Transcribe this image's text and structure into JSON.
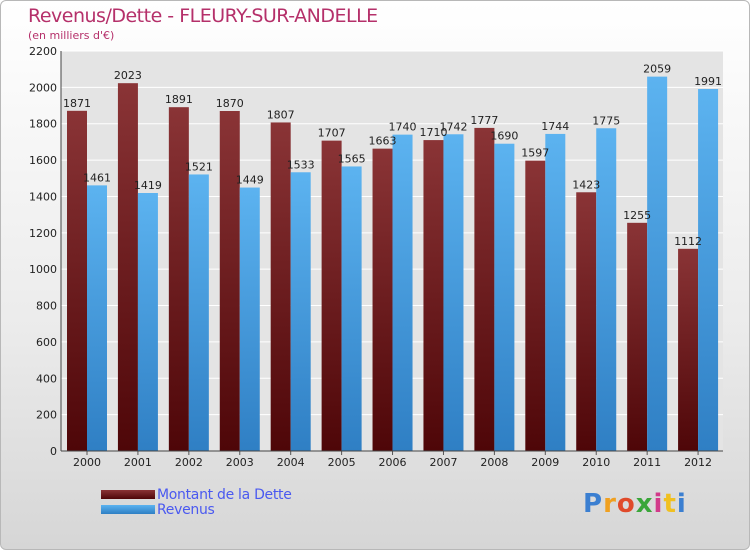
{
  "header": {
    "title": "Revenus/Dette - FLEURY-SUR-ANDELLE",
    "subtitle": "(en milliers d'€)"
  },
  "chart_data": {
    "type": "bar",
    "categories": [
      "2000",
      "2001",
      "2002",
      "2003",
      "2004",
      "2005",
      "2006",
      "2007",
      "2008",
      "2009",
      "2010",
      "2011",
      "2012"
    ],
    "series": [
      {
        "name": "Montant de la Dette",
        "color": "#6b1a1e",
        "values": [
          1871,
          2023,
          1891,
          1870,
          1807,
          1707,
          1663,
          1710,
          1777,
          1597,
          1423,
          1255,
          1112
        ],
        "labels": [
          "1871",
          "2023",
          "1891",
          "1870",
          "1807",
          "1707",
          "1663",
          "1710",
          "1777",
          "1597",
          "1423",
          "1255",
          "1112"
        ]
      },
      {
        "name": "Revenus",
        "color": "#4aa3e8",
        "values": [
          1461,
          1419,
          1521,
          1449,
          1533,
          1565,
          1740,
          1742,
          1690,
          1744,
          1775,
          2059,
          1991
        ],
        "labels": [
          "1461",
          "1419",
          "1521",
          "1449",
          "1533",
          "1565",
          "1740",
          "1742",
          "1690",
          "1744",
          "1775",
          "2059",
          "1991"
        ]
      }
    ],
    "ylim": [
      0,
      2200
    ],
    "yticks": [
      0,
      200,
      400,
      600,
      800,
      1000,
      1200,
      1400,
      1600,
      1800,
      2000,
      2200
    ],
    "grid": true,
    "legend_position": "bottom-left"
  },
  "legend": {
    "items": [
      {
        "label": "Montant de la Dette",
        "color": "#6b1a1e"
      },
      {
        "label": "Revenus",
        "color": "#4aa3e8"
      }
    ]
  },
  "logo": {
    "letters": [
      "P",
      "r",
      "o",
      "x",
      "i",
      "t",
      "i"
    ],
    "colors": [
      "#3b7fd1",
      "#f0a020",
      "#e04a2a",
      "#3aa63a",
      "#d23a8a",
      "#f0c020",
      "#3b7fd1"
    ]
  }
}
